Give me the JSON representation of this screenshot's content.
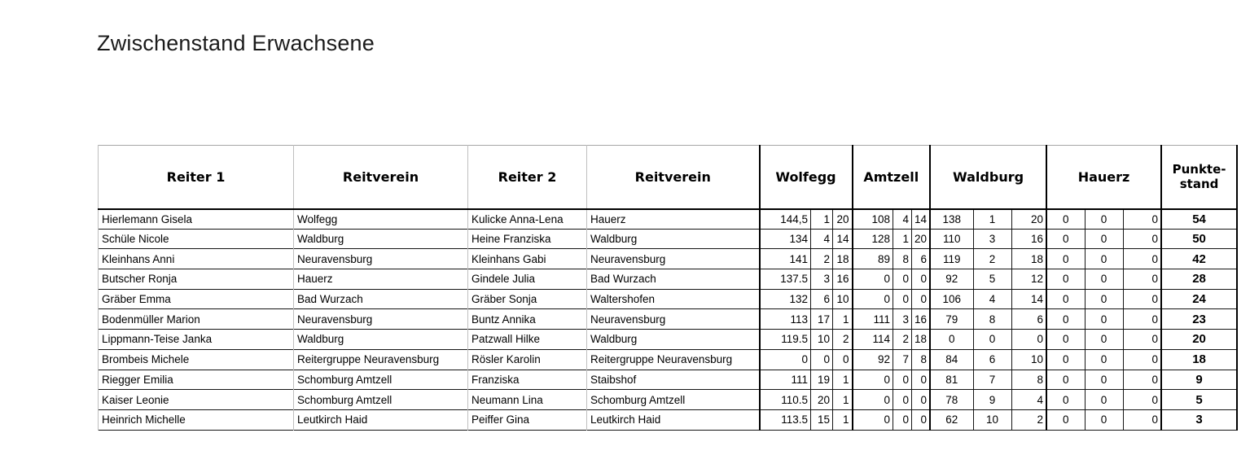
{
  "title": "Zwischenstand Erwachsene",
  "table": {
    "headers": {
      "reiter1": "Reiter 1",
      "reitverein1": "Reitverein",
      "reiter2": "Reiter 2",
      "reitverein2": "Reitverein",
      "venues": [
        "Wolfegg",
        "Amtzell",
        "Waldburg",
        "Hauerz"
      ],
      "punkte_line1": "Punkte-",
      "punkte_line2": "stand"
    },
    "rows": [
      {
        "reiter1": "Hierlemann Gisela",
        "verein1": "Wolfegg",
        "reiter2": "Kulicke Anna-Lena",
        "verein2": "Hauerz",
        "wolfegg": [
          "144,5",
          "1",
          "20"
        ],
        "amtzell": [
          "108",
          "4",
          "14"
        ],
        "waldburg": [
          "138",
          "1",
          "20"
        ],
        "hauerz": [
          "0",
          "0",
          "0"
        ],
        "punkte": "54"
      },
      {
        "reiter1": "Schüle Nicole",
        "verein1": "Waldburg",
        "reiter2": "Heine Franziska",
        "verein2": "Waldburg",
        "wolfegg": [
          "134",
          "4",
          "14"
        ],
        "amtzell": [
          "128",
          "1",
          "20"
        ],
        "waldburg": [
          "110",
          "3",
          "16"
        ],
        "hauerz": [
          "0",
          "0",
          "0"
        ],
        "punkte": "50"
      },
      {
        "reiter1": "Kleinhans Anni",
        "verein1": "Neuravensburg",
        "reiter2": "Kleinhans Gabi",
        "verein2": "Neuravensburg",
        "wolfegg": [
          "141",
          "2",
          "18"
        ],
        "amtzell": [
          "89",
          "8",
          "6"
        ],
        "waldburg": [
          "119",
          "2",
          "18"
        ],
        "hauerz": [
          "0",
          "0",
          "0"
        ],
        "punkte": "42"
      },
      {
        "reiter1": "Butscher Ronja",
        "verein1": "Hauerz",
        "reiter2": "Gindele Julia",
        "verein2": "Bad Wurzach",
        "wolfegg": [
          "137.5",
          "3",
          "16"
        ],
        "amtzell": [
          "0",
          "0",
          "0"
        ],
        "waldburg": [
          "92",
          "5",
          "12"
        ],
        "hauerz": [
          "0",
          "0",
          "0"
        ],
        "punkte": "28"
      },
      {
        "reiter1": "Gräber Emma",
        "verein1": "Bad Wurzach",
        "reiter2": "Gräber Sonja",
        "verein2": "Waltershofen",
        "wolfegg": [
          "132",
          "6",
          "10"
        ],
        "amtzell": [
          "0",
          "0",
          "0"
        ],
        "waldburg": [
          "106",
          "4",
          "14"
        ],
        "hauerz": [
          "0",
          "0",
          "0"
        ],
        "punkte": "24"
      },
      {
        "reiter1": "Bodenmüller Marion",
        "verein1": "Neuravensburg",
        "reiter2": "Buntz Annika",
        "verein2": "Neuravensburg",
        "wolfegg": [
          "113",
          "17",
          "1"
        ],
        "amtzell": [
          "111",
          "3",
          "16"
        ],
        "waldburg": [
          "79",
          "8",
          "6"
        ],
        "hauerz": [
          "0",
          "0",
          "0"
        ],
        "punkte": "23"
      },
      {
        "reiter1": "Lippmann-Teise Janka",
        "verein1": "Waldburg",
        "reiter2": "Patzwall Hilke",
        "verein2": "Waldburg",
        "wolfegg": [
          "119.5",
          "10",
          "2"
        ],
        "amtzell": [
          "114",
          "2",
          "18"
        ],
        "waldburg": [
          "0",
          "0",
          "0"
        ],
        "hauerz": [
          "0",
          "0",
          "0"
        ],
        "punkte": "20"
      },
      {
        "reiter1": "Brombeis Michele",
        "verein1": "Reitergruppe Neuravensburg",
        "reiter2": "Rösler Karolin",
        "verein2": "Reitergruppe Neuravensburg",
        "wolfegg": [
          "0",
          "0",
          "0"
        ],
        "amtzell": [
          "92",
          "7",
          "8"
        ],
        "waldburg": [
          "84",
          "6",
          "10"
        ],
        "hauerz": [
          "0",
          "0",
          "0"
        ],
        "punkte": "18"
      },
      {
        "reiter1": "Riegger Emilia",
        "verein1": "Schomburg Amtzell",
        "reiter2": "Franziska",
        "verein2": "Staibshof",
        "wolfegg": [
          "111",
          "19",
          "1"
        ],
        "amtzell": [
          "0",
          "0",
          "0"
        ],
        "waldburg": [
          "81",
          "7",
          "8"
        ],
        "hauerz": [
          "0",
          "0",
          "0"
        ],
        "punkte": "9"
      },
      {
        "reiter1": "Kaiser Leonie",
        "verein1": "Schomburg Amtzell",
        "reiter2": "Neumann Lina",
        "verein2": "Schomburg Amtzell",
        "wolfegg": [
          "110.5",
          "20",
          "1"
        ],
        "amtzell": [
          "0",
          "0",
          "0"
        ],
        "waldburg": [
          "78",
          "9",
          "4"
        ],
        "hauerz": [
          "0",
          "0",
          "0"
        ],
        "punkte": "5"
      },
      {
        "reiter1": "Heinrich Michelle",
        "verein1": "Leutkirch Haid",
        "reiter2": "Peiffer Gina",
        "verein2": "Leutkirch Haid",
        "wolfegg": [
          "113.5",
          "15",
          "1"
        ],
        "amtzell": [
          "0",
          "0",
          "0"
        ],
        "waldburg": [
          "62",
          "10",
          "2"
        ],
        "hauerz": [
          "0",
          "0",
          "0"
        ],
        "punkte": "3"
      }
    ]
  }
}
